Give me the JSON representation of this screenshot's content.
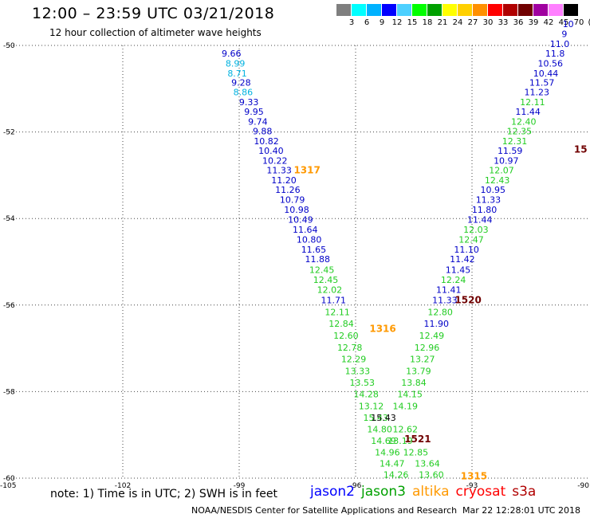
{
  "header": {
    "title": "12:00 – 23:59 UTC 03/21/2018",
    "subtitle": "12 hour collection of altimeter wave heights"
  },
  "colorbar": {
    "swatches": [
      "#7f7f7f",
      "#00ffff",
      "#00b2ff",
      "#0000ff",
      "#4dd0ff",
      "#00ff00",
      "#00a000",
      "#ffff00",
      "#ffd000",
      "#ff9000",
      "#ff0000",
      "#b00000",
      "#700000",
      "#a000a0",
      "#ff80ff",
      "#000000"
    ],
    "labels": [
      "3",
      "6",
      "9",
      "12",
      "15",
      "18",
      "21",
      "24",
      "27",
      "30",
      "33",
      "36",
      "39",
      "42",
      "45",
      "70",
      "(ft)"
    ]
  },
  "chart_data": {
    "type": "map",
    "xlim": [
      -105,
      -90
    ],
    "ylim": [
      -60,
      -50
    ],
    "x_ticks": [
      "-105",
      "-102",
      "-99",
      "-96",
      "-93",
      "-90"
    ],
    "y_ticks": [
      "-50",
      "-52",
      "-54",
      "-56",
      "-58",
      "-60"
    ],
    "colors": {
      "jason2": "#0000c8",
      "jason3": "#22cc22",
      "altika": "#ff9900",
      "cryosat": "#ff0000",
      "s3a": "#b00000",
      "light_blue": "#00b2e0"
    },
    "tracks": [
      {
        "satellite": "jason2",
        "points": [
          {
            "lon": -99.2,
            "lat": -50.18,
            "v": "9.66",
            "c": "#0000c8"
          },
          {
            "lon": -99.1,
            "lat": -50.41,
            "v": "8.99",
            "c": "#00b2e0"
          },
          {
            "lon": -99.05,
            "lat": -50.64,
            "v": "8.71",
            "c": "#00b2e0"
          },
          {
            "lon": -98.95,
            "lat": -50.86,
            "v": "9.28",
            "c": "#0000c8"
          },
          {
            "lon": -98.9,
            "lat": -51.08,
            "v": "8.86",
            "c": "#00b2e0"
          },
          {
            "lon": -98.75,
            "lat": -51.31,
            "v": "9.33",
            "c": "#0000c8"
          },
          {
            "lon": -98.62,
            "lat": -51.53,
            "v": "9.95",
            "c": "#0000c8"
          },
          {
            "lon": -98.52,
            "lat": -51.76,
            "v": "9.74",
            "c": "#0000c8"
          },
          {
            "lon": -98.4,
            "lat": -51.98,
            "v": "9.88",
            "c": "#0000c8"
          },
          {
            "lon": -98.3,
            "lat": -52.21,
            "v": "10.82",
            "c": "#0000c8"
          },
          {
            "lon": -98.18,
            "lat": -52.43,
            "v": "10.40",
            "c": "#0000c8"
          },
          {
            "lon": -98.08,
            "lat": -52.66,
            "v": "10.22",
            "c": "#0000c8"
          },
          {
            "lon": -97.97,
            "lat": -52.88,
            "v": "11.33",
            "c": "#0000c8"
          },
          {
            "lon": -97.85,
            "lat": -53.11,
            "v": "11.20",
            "c": "#0000c8"
          },
          {
            "lon": -97.75,
            "lat": -53.33,
            "v": "11.26",
            "c": "#0000c8"
          },
          {
            "lon": -97.63,
            "lat": -53.56,
            "v": "10.79",
            "c": "#0000c8"
          },
          {
            "lon": -97.52,
            "lat": -53.79,
            "v": "10.98",
            "c": "#0000c8"
          },
          {
            "lon": -97.42,
            "lat": -54.02,
            "v": "10.49",
            "c": "#0000c8"
          },
          {
            "lon": -97.3,
            "lat": -54.25,
            "v": "11.64",
            "c": "#0000c8"
          },
          {
            "lon": -97.2,
            "lat": -54.48,
            "v": "10.80",
            "c": "#0000c8"
          },
          {
            "lon": -97.08,
            "lat": -54.71,
            "v": "11.65",
            "c": "#0000c8"
          },
          {
            "lon": -96.98,
            "lat": -54.94,
            "v": "11.88",
            "c": "#0000c8"
          },
          {
            "lon": -96.87,
            "lat": -55.18,
            "v": "12.45",
            "c": "#22cc22"
          },
          {
            "lon": -96.77,
            "lat": -55.41,
            "v": "12.45",
            "c": "#22cc22"
          },
          {
            "lon": -96.67,
            "lat": -55.64,
            "v": "12.02",
            "c": "#22cc22"
          },
          {
            "lon": -96.57,
            "lat": -55.88,
            "v": "11.71",
            "c": "#0000c8"
          },
          {
            "lon": -96.47,
            "lat": -56.16,
            "v": "12.11",
            "c": "#22cc22"
          },
          {
            "lon": -96.37,
            "lat": -56.43,
            "v": "12.84",
            "c": "#22cc22"
          },
          {
            "lon": -96.25,
            "lat": -56.7,
            "v": "12.60",
            "c": "#22cc22"
          },
          {
            "lon": -96.15,
            "lat": -56.98,
            "v": "12.78",
            "c": "#22cc22"
          },
          {
            "lon": -96.05,
            "lat": -57.25,
            "v": "12.29",
            "c": "#22cc22"
          },
          {
            "lon": -95.95,
            "lat": -57.52,
            "v": "13.33",
            "c": "#22cc22"
          },
          {
            "lon": -95.83,
            "lat": -57.79,
            "v": "13.53",
            "c": "#22cc22"
          },
          {
            "lon": -95.73,
            "lat": -58.06,
            "v": "14.28",
            "c": "#22cc22"
          },
          {
            "lon": -95.6,
            "lat": -58.33,
            "v": "13.12",
            "c": "#22cc22"
          },
          {
            "lon": -95.48,
            "lat": -58.6,
            "v": "15.43",
            "c": "#22cc22"
          },
          {
            "lon": -95.38,
            "lat": -58.87,
            "v": "14.80",
            "c": "#22cc22"
          },
          {
            "lon": -95.28,
            "lat": -59.13,
            "v": "14.69",
            "c": "#22cc22"
          },
          {
            "lon": -95.18,
            "lat": -59.4,
            "v": "14.96",
            "c": "#22cc22"
          },
          {
            "lon": -95.06,
            "lat": -59.66,
            "v": "14.47",
            "c": "#22cc22"
          },
          {
            "lon": -94.96,
            "lat": -59.92,
            "v": "14.26",
            "c": "#22cc22"
          }
        ]
      },
      {
        "satellite": "jason3",
        "points": [
          {
            "lon": -94.05,
            "lat": -59.92,
            "v": "13.60",
            "c": "#22cc22"
          },
          {
            "lon": -94.15,
            "lat": -59.66,
            "v": "13.64",
            "c": "#22cc22"
          },
          {
            "lon": -94.45,
            "lat": -59.4,
            "v": "12.85",
            "c": "#22cc22"
          },
          {
            "lon": -94.85,
            "lat": -59.13,
            "v": "13.19",
            "c": "#22cc22"
          },
          {
            "lon": -94.72,
            "lat": -58.87,
            "v": "12.62",
            "c": "#22cc22"
          },
          {
            "lon": -95.28,
            "lat": -58.6,
            "v": "15.43",
            "c": "#000000"
          },
          {
            "lon": -94.72,
            "lat": -58.33,
            "v": "14.19",
            "c": "#22cc22"
          },
          {
            "lon": -94.6,
            "lat": -58.06,
            "v": "14.15",
            "c": "#22cc22"
          },
          {
            "lon": -94.5,
            "lat": -57.79,
            "v": "13.84",
            "c": "#22cc22"
          },
          {
            "lon": -94.38,
            "lat": -57.52,
            "v": "13.79",
            "c": "#22cc22"
          },
          {
            "lon": -94.28,
            "lat": -57.25,
            "v": "13.27",
            "c": "#22cc22"
          },
          {
            "lon": -94.16,
            "lat": -56.98,
            "v": "12.96",
            "c": "#22cc22"
          },
          {
            "lon": -94.04,
            "lat": -56.7,
            "v": "12.49",
            "c": "#22cc22"
          },
          {
            "lon": -93.92,
            "lat": -56.43,
            "v": "11.90",
            "c": "#0000c8"
          },
          {
            "lon": -93.82,
            "lat": -56.16,
            "v": "12.80",
            "c": "#22cc22"
          },
          {
            "lon": -93.7,
            "lat": -55.88,
            "v": "11.33",
            "c": "#0000c8"
          },
          {
            "lon": -93.6,
            "lat": -55.64,
            "v": "11.41",
            "c": "#0000c8"
          },
          {
            "lon": -93.48,
            "lat": -55.41,
            "v": "12.24",
            "c": "#22cc22"
          },
          {
            "lon": -93.36,
            "lat": -55.18,
            "v": "11.45",
            "c": "#0000c8"
          },
          {
            "lon": -93.25,
            "lat": -54.94,
            "v": "11.42",
            "c": "#0000c8"
          },
          {
            "lon": -93.14,
            "lat": -54.71,
            "v": "11.10",
            "c": "#0000c8"
          },
          {
            "lon": -93.02,
            "lat": -54.48,
            "v": "12.47",
            "c": "#22cc22"
          },
          {
            "lon": -92.9,
            "lat": -54.25,
            "v": "12.03",
            "c": "#22cc22"
          },
          {
            "lon": -92.8,
            "lat": -54.02,
            "v": "11.44",
            "c": "#0000c8"
          },
          {
            "lon": -92.68,
            "lat": -53.79,
            "v": "11.80",
            "c": "#0000c8"
          },
          {
            "lon": -92.58,
            "lat": -53.56,
            "v": "11.33",
            "c": "#0000c8"
          },
          {
            "lon": -92.46,
            "lat": -53.33,
            "v": "10.95",
            "c": "#0000c8"
          },
          {
            "lon": -92.35,
            "lat": -53.11,
            "v": "12.43",
            "c": "#22cc22"
          },
          {
            "lon": -92.24,
            "lat": -52.88,
            "v": "12.07",
            "c": "#22cc22"
          },
          {
            "lon": -92.12,
            "lat": -52.66,
            "v": "10.97",
            "c": "#0000c8"
          },
          {
            "lon": -92.02,
            "lat": -52.43,
            "v": "11.59",
            "c": "#0000c8"
          },
          {
            "lon": -91.9,
            "lat": -52.21,
            "v": "12.31",
            "c": "#22cc22"
          },
          {
            "lon": -91.78,
            "lat": -51.98,
            "v": "12.35",
            "c": "#22cc22"
          },
          {
            "lon": -91.67,
            "lat": -51.76,
            "v": "12.40",
            "c": "#22cc22"
          },
          {
            "lon": -91.56,
            "lat": -51.53,
            "v": "11.44",
            "c": "#0000c8"
          },
          {
            "lon": -91.44,
            "lat": -51.31,
            "v": "12.11",
            "c": "#22cc22"
          },
          {
            "lon": -91.33,
            "lat": -51.08,
            "v": "11.23",
            "c": "#0000c8"
          },
          {
            "lon": -91.2,
            "lat": -50.86,
            "v": "11.57",
            "c": "#0000c8"
          },
          {
            "lon": -91.1,
            "lat": -50.64,
            "v": "10.44",
            "c": "#0000c8"
          },
          {
            "lon": -90.98,
            "lat": -50.41,
            "v": "10.56",
            "c": "#0000c8"
          },
          {
            "lon": -90.86,
            "lat": -50.18,
            "v": "11.8",
            "c": "#0000c8"
          },
          {
            "lon": -90.74,
            "lat": -49.96,
            "v": "11.0",
            "c": "#0000c8"
          },
          {
            "lon": -90.62,
            "lat": -49.73,
            "v": "9",
            "c": "#0000c8"
          },
          {
            "lon": -90.52,
            "lat": -49.5,
            "v": "10",
            "c": "#0000c8"
          }
        ]
      }
    ],
    "orbit_labels": [
      {
        "lon": -97.25,
        "lat": -52.88,
        "text": "1317",
        "c": "#ff9900"
      },
      {
        "lon": -95.3,
        "lat": -56.55,
        "text": "1316",
        "c": "#ff9900"
      },
      {
        "lon": -94.4,
        "lat": -59.1,
        "text": "1521",
        "c": "#700000"
      },
      {
        "lon": -93.1,
        "lat": -55.88,
        "text": "1520",
        "c": "#700000"
      },
      {
        "lon": -92.95,
        "lat": -59.95,
        "text": "1315",
        "c": "#ff9900"
      },
      {
        "lon": -90.2,
        "lat": -52.4,
        "text": "15",
        "c": "#700000"
      }
    ]
  },
  "footer": {
    "note": "note: 1) Time is in UTC; 2) SWH is in feet",
    "legend": [
      {
        "name": "jason2",
        "color": "#0000ff"
      },
      {
        "name": "jason3",
        "color": "#00a000"
      },
      {
        "name": "altika",
        "color": "#ff9900"
      },
      {
        "name": "cryosat",
        "color": "#ff0000"
      },
      {
        "name": "s3a",
        "color": "#b00000"
      }
    ],
    "credit": "NOAA/NESDIS Center for Satellite Applications and Research",
    "timestamp": "Mar 22 12:28:01 UTC 2018"
  }
}
